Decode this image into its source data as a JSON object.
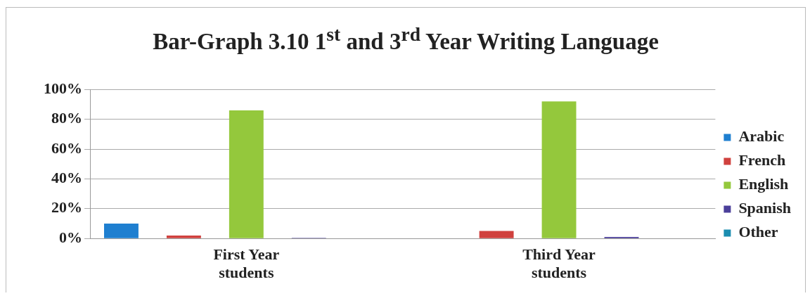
{
  "chart_data": {
    "type": "bar",
    "title": "Bar-Graph 3.10 1$^{st}$ and 3$^{rd}$ Year Writing Language",
    "categories": [
      "First Year students",
      "Third Year students"
    ],
    "series": [
      {
        "name": "Arabic",
        "color": "#1f7fd0",
        "values": [
          10,
          0
        ]
      },
      {
        "name": "French",
        "color": "#d0413e",
        "values": [
          2,
          5
        ]
      },
      {
        "name": "English",
        "color": "#94c83c",
        "values": [
          86,
          92
        ]
      },
      {
        "name": "Spanish",
        "color": "#4b3f9a",
        "values": [
          0.5,
          1
        ]
      },
      {
        "name": "Other",
        "color": "#1b8db0",
        "values": [
          0,
          0
        ]
      }
    ],
    "ylim": [
      0,
      100
    ],
    "yticks": [
      {
        "value": 0,
        "label": "0%"
      },
      {
        "value": 20,
        "label": "20%"
      },
      {
        "value": 40,
        "label": "40%"
      },
      {
        "value": 60,
        "label": "60%"
      },
      {
        "value": 80,
        "label": "80%"
      },
      {
        "value": 100,
        "label": "100%"
      }
    ],
    "grid": "y",
    "legend": "right"
  }
}
